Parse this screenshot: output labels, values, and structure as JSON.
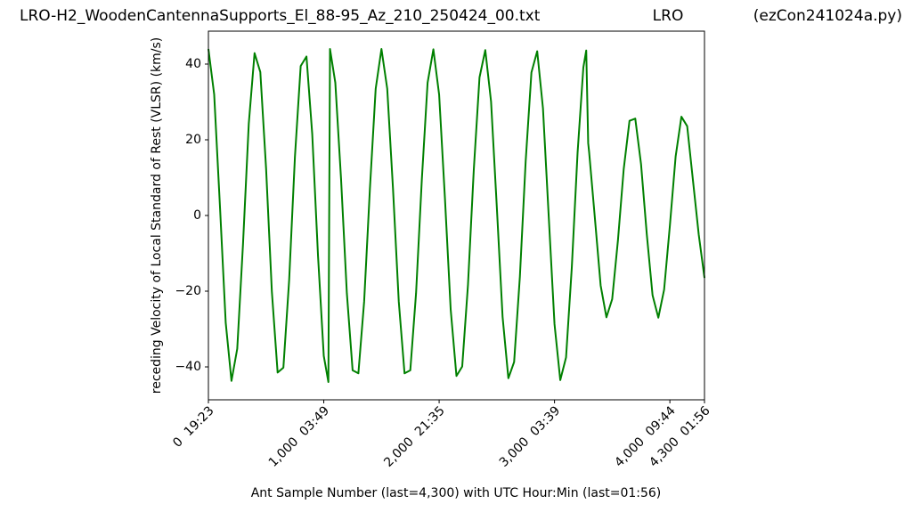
{
  "chart_data": {
    "type": "line",
    "title": "LRO-H2_WoodenCantennaSupports_El_88-95_Az_210_250424_00.txt",
    "title_center": "LRO",
    "title_right": "(ezCon241024a.py)",
    "x_label": "Ant Sample Number (last=4,300) with UTC Hour:Min (last=01:56)",
    "y_label": "receding Velocity of Local Standard of Rest (VLSR) (km/s)",
    "xlim": [
      0,
      4300
    ],
    "ylim": [
      -48.7,
      48.7
    ],
    "xticks": [
      {
        "value": 0,
        "label": "0  19:23"
      },
      {
        "value": 1000,
        "label": "1,000  03:49"
      },
      {
        "value": 2000,
        "label": "2,000  21:35"
      },
      {
        "value": 3000,
        "label": "3,000  03:39"
      },
      {
        "value": 4000,
        "label": "4,000  09:44"
      },
      {
        "value": 4300,
        "label": "4,300  01:56"
      }
    ],
    "yticks": [
      {
        "value": -40,
        "label": "−40"
      },
      {
        "value": -20,
        "label": "−20"
      },
      0,
      20,
      40
    ],
    "x": [
      0,
      50,
      100,
      150,
      200,
      250,
      300,
      350,
      400,
      450,
      500,
      550,
      600,
      650,
      700,
      750,
      800,
      850,
      900,
      950,
      1000,
      1040,
      1054,
      1100,
      1150,
      1200,
      1250,
      1300,
      1350,
      1400,
      1450,
      1500,
      1550,
      1600,
      1650,
      1700,
      1750,
      1800,
      1850,
      1900,
      1950,
      2000,
      2050,
      2100,
      2150,
      2200,
      2250,
      2300,
      2350,
      2400,
      2450,
      2500,
      2550,
      2600,
      2650,
      2700,
      2750,
      2800,
      2850,
      2900,
      2950,
      3000,
      3050,
      3100,
      3150,
      3200,
      3250,
      3275,
      3292,
      3300,
      3350,
      3400,
      3450,
      3500,
      3550,
      3600,
      3650,
      3700,
      3750,
      3800,
      3850,
      3900,
      3950,
      4000,
      4050,
      4100,
      4150,
      4200,
      4250,
      4300
    ],
    "series": [
      {
        "color": "#008000",
        "values": [
          44,
          32.0,
          2.5,
          -28.3,
          -43.7,
          -35.2,
          -7.5,
          24.3,
          42.9,
          37.9,
          12.4,
          -20.1,
          -41.5,
          -40.2,
          -17.0,
          15.5,
          39.5,
          42.0,
          21.5,
          -10.6,
          -37.1,
          -44.0,
          44.0,
          35.1,
          9.5,
          -20.5,
          -40.9,
          -41.7,
          -22.7,
          7.1,
          33.5,
          44.0,
          33.5,
          7.1,
          -22.7,
          -41.7,
          -40.9,
          -20.5,
          9.5,
          35.1,
          43.9,
          31.9,
          4.7,
          -24.8,
          -42.4,
          -39.9,
          -18.3,
          11.9,
          36.5,
          43.7,
          30.1,
          2.2,
          -26.8,
          -43.0,
          -38.7,
          -16.1,
          14.3,
          37.8,
          43.4,
          28.3,
          -0.3,
          -28.7,
          -43.5,
          -37.5,
          -13.7,
          16.6,
          39.1,
          43.6,
          19.1,
          16.8,
          -0.7,
          -18.5,
          -26.9,
          -22.1,
          -6.5,
          12.3,
          25.0,
          25.6,
          13.6,
          -5.0,
          -21.1,
          -27.0,
          -19.6,
          -2.7,
          15.6,
          26.1,
          23.6,
          9.3,
          -5.0,
          -16.5
        ]
      }
    ]
  }
}
